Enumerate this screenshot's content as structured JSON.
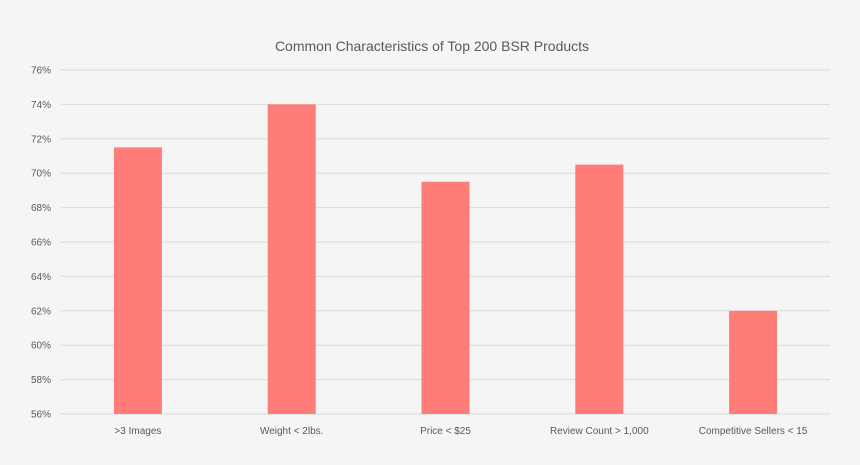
{
  "chart_data": {
    "type": "bar",
    "title": "Common Characteristics of Top 200 BSR Products",
    "xlabel": "",
    "ylabel": "",
    "categories": [
      ">3 Images",
      "Weight < 2lbs.",
      "Price < $25",
      "Review Count > 1,000",
      "Competitive Sellers < 15"
    ],
    "values": [
      71.5,
      74,
      69.5,
      70.5,
      62
    ],
    "ylim": [
      56,
      76
    ],
    "yticks": [
      56,
      58,
      60,
      62,
      64,
      66,
      68,
      70,
      72,
      74,
      76
    ],
    "ytick_suffix": "%",
    "grid": true,
    "legend": "none",
    "bar_color": "#ff7c78"
  }
}
